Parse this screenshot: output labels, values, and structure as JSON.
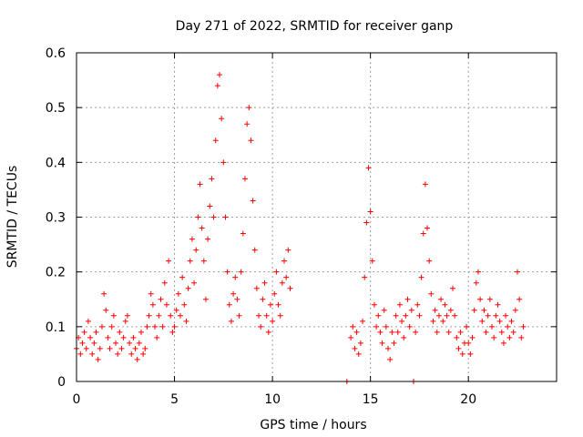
{
  "chart_data": {
    "type": "scatter",
    "title": "Day 271 of 2022, SRMTID for receiver ganp",
    "xlabel": "GPS time / hours",
    "ylabel": "SRMTID / TECUs",
    "xlim": [
      0,
      24.5
    ],
    "ylim": [
      0,
      0.6
    ],
    "xticks": [
      0,
      5,
      10,
      15,
      20
    ],
    "xtick_labels": [
      "0",
      "5",
      "10",
      "15",
      "20"
    ],
    "yticks": [
      0,
      0.1,
      0.2,
      0.3,
      0.4,
      0.5,
      0.6
    ],
    "ytick_labels": [
      "0",
      "0.1",
      "0.2",
      "0.3",
      "0.4",
      "0.5",
      "0.6"
    ],
    "grid": true,
    "marker": "plus",
    "color": "#ff0000",
    "series": [
      {
        "name": "SRMTID",
        "points": [
          [
            0.0,
            0.06
          ],
          [
            0.1,
            0.08
          ],
          [
            0.2,
            0.05
          ],
          [
            0.3,
            0.07
          ],
          [
            0.4,
            0.09
          ],
          [
            0.5,
            0.06
          ],
          [
            0.6,
            0.11
          ],
          [
            0.7,
            0.08
          ],
          [
            0.8,
            0.05
          ],
          [
            0.9,
            0.07
          ],
          [
            1.0,
            0.09
          ],
          [
            1.1,
            0.04
          ],
          [
            1.2,
            0.06
          ],
          [
            1.3,
            0.1
          ],
          [
            1.4,
            0.16
          ],
          [
            1.5,
            0.13
          ],
          [
            1.6,
            0.08
          ],
          [
            1.7,
            0.06
          ],
          [
            1.8,
            0.1
          ],
          [
            1.9,
            0.12
          ],
          [
            2.0,
            0.07
          ],
          [
            2.1,
            0.05
          ],
          [
            2.2,
            0.09
          ],
          [
            2.3,
            0.06
          ],
          [
            2.4,
            0.08
          ],
          [
            2.5,
            0.11
          ],
          [
            2.6,
            0.12
          ],
          [
            2.7,
            0.07
          ],
          [
            2.8,
            0.05
          ],
          [
            2.9,
            0.08
          ],
          [
            3.0,
            0.06
          ],
          [
            3.1,
            0.04
          ],
          [
            3.2,
            0.07
          ],
          [
            3.3,
            0.09
          ],
          [
            3.4,
            0.05
          ],
          [
            3.5,
            0.06
          ],
          [
            3.6,
            0.1
          ],
          [
            3.7,
            0.12
          ],
          [
            3.8,
            0.16
          ],
          [
            3.9,
            0.14
          ],
          [
            4.0,
            0.1
          ],
          [
            4.1,
            0.08
          ],
          [
            4.2,
            0.12
          ],
          [
            4.3,
            0.15
          ],
          [
            4.4,
            0.1
          ],
          [
            4.5,
            0.18
          ],
          [
            4.6,
            0.14
          ],
          [
            4.7,
            0.22
          ],
          [
            4.8,
            0.12
          ],
          [
            4.9,
            0.09
          ],
          [
            5.0,
            0.1
          ],
          [
            5.1,
            0.13
          ],
          [
            5.2,
            0.16
          ],
          [
            5.3,
            0.12
          ],
          [
            5.4,
            0.19
          ],
          [
            5.5,
            0.14
          ],
          [
            5.6,
            0.11
          ],
          [
            5.7,
            0.17
          ],
          [
            5.8,
            0.22
          ],
          [
            5.9,
            0.26
          ],
          [
            6.0,
            0.18
          ],
          [
            6.1,
            0.24
          ],
          [
            6.2,
            0.3
          ],
          [
            6.3,
            0.36
          ],
          [
            6.4,
            0.28
          ],
          [
            6.5,
            0.22
          ],
          [
            6.6,
            0.15
          ],
          [
            6.7,
            0.26
          ],
          [
            6.8,
            0.32
          ],
          [
            6.9,
            0.37
          ],
          [
            7.0,
            0.3
          ],
          [
            7.1,
            0.44
          ],
          [
            7.2,
            0.54
          ],
          [
            7.3,
            0.56
          ],
          [
            7.4,
            0.48
          ],
          [
            7.5,
            0.4
          ],
          [
            7.6,
            0.3
          ],
          [
            7.7,
            0.2
          ],
          [
            7.8,
            0.14
          ],
          [
            7.9,
            0.11
          ],
          [
            8.0,
            0.16
          ],
          [
            8.1,
            0.19
          ],
          [
            8.2,
            0.15
          ],
          [
            8.3,
            0.12
          ],
          [
            8.4,
            0.2
          ],
          [
            8.5,
            0.27
          ],
          [
            8.6,
            0.37
          ],
          [
            8.7,
            0.47
          ],
          [
            8.8,
            0.5
          ],
          [
            8.9,
            0.44
          ],
          [
            9.0,
            0.33
          ],
          [
            9.1,
            0.24
          ],
          [
            9.2,
            0.17
          ],
          [
            9.3,
            0.12
          ],
          [
            9.4,
            0.1
          ],
          [
            9.5,
            0.15
          ],
          [
            9.6,
            0.18
          ],
          [
            9.7,
            0.12
          ],
          [
            9.8,
            0.09
          ],
          [
            9.9,
            0.14
          ],
          [
            10.0,
            0.11
          ],
          [
            10.1,
            0.16
          ],
          [
            10.2,
            0.2
          ],
          [
            10.3,
            0.14
          ],
          [
            10.4,
            0.12
          ],
          [
            10.5,
            0.18
          ],
          [
            10.6,
            0.22
          ],
          [
            10.7,
            0.19
          ],
          [
            10.8,
            0.24
          ],
          [
            10.9,
            0.17
          ],
          [
            13.8,
            0.0
          ],
          [
            14.0,
            0.08
          ],
          [
            14.1,
            0.1
          ],
          [
            14.2,
            0.06
          ],
          [
            14.3,
            0.09
          ],
          [
            14.4,
            0.05
          ],
          [
            14.5,
            0.07
          ],
          [
            14.6,
            0.11
          ],
          [
            14.7,
            0.19
          ],
          [
            14.8,
            0.29
          ],
          [
            14.9,
            0.39
          ],
          [
            15.0,
            0.31
          ],
          [
            15.1,
            0.22
          ],
          [
            15.2,
            0.14
          ],
          [
            15.3,
            0.1
          ],
          [
            15.4,
            0.12
          ],
          [
            15.5,
            0.09
          ],
          [
            15.6,
            0.07
          ],
          [
            15.7,
            0.13
          ],
          [
            15.8,
            0.1
          ],
          [
            15.9,
            0.06
          ],
          [
            16.0,
            0.04
          ],
          [
            16.1,
            0.09
          ],
          [
            16.2,
            0.07
          ],
          [
            16.3,
            0.12
          ],
          [
            16.4,
            0.09
          ],
          [
            16.5,
            0.14
          ],
          [
            16.6,
            0.11
          ],
          [
            16.7,
            0.08
          ],
          [
            16.8,
            0.12
          ],
          [
            16.9,
            0.15
          ],
          [
            17.0,
            0.1
          ],
          [
            17.1,
            0.13
          ],
          [
            17.2,
            0.0
          ],
          [
            17.3,
            0.09
          ],
          [
            17.4,
            0.14
          ],
          [
            17.5,
            0.12
          ],
          [
            17.6,
            0.19
          ],
          [
            17.7,
            0.27
          ],
          [
            17.8,
            0.36
          ],
          [
            17.9,
            0.28
          ],
          [
            18.0,
            0.22
          ],
          [
            18.1,
            0.16
          ],
          [
            18.2,
            0.11
          ],
          [
            18.3,
            0.13
          ],
          [
            18.4,
            0.09
          ],
          [
            18.5,
            0.12
          ],
          [
            18.6,
            0.15
          ],
          [
            18.7,
            0.11
          ],
          [
            18.8,
            0.14
          ],
          [
            18.9,
            0.12
          ],
          [
            19.0,
            0.09
          ],
          [
            19.1,
            0.13
          ],
          [
            19.2,
            0.17
          ],
          [
            19.3,
            0.12
          ],
          [
            19.4,
            0.08
          ],
          [
            19.5,
            0.06
          ],
          [
            19.6,
            0.09
          ],
          [
            19.7,
            0.05
          ],
          [
            19.8,
            0.07
          ],
          [
            19.9,
            0.1
          ],
          [
            20.0,
            0.07
          ],
          [
            20.1,
            0.05
          ],
          [
            20.2,
            0.08
          ],
          [
            20.3,
            0.13
          ],
          [
            20.4,
            0.18
          ],
          [
            20.5,
            0.2
          ],
          [
            20.6,
            0.15
          ],
          [
            20.7,
            0.11
          ],
          [
            20.8,
            0.13
          ],
          [
            20.9,
            0.09
          ],
          [
            21.0,
            0.12
          ],
          [
            21.1,
            0.15
          ],
          [
            21.2,
            0.1
          ],
          [
            21.3,
            0.08
          ],
          [
            21.4,
            0.12
          ],
          [
            21.5,
            0.14
          ],
          [
            21.6,
            0.11
          ],
          [
            21.7,
            0.09
          ],
          [
            21.8,
            0.07
          ],
          [
            21.9,
            0.12
          ],
          [
            22.0,
            0.1
          ],
          [
            22.1,
            0.08
          ],
          [
            22.2,
            0.11
          ],
          [
            22.3,
            0.09
          ],
          [
            22.4,
            0.13
          ],
          [
            22.5,
            0.2
          ],
          [
            22.6,
            0.15
          ],
          [
            22.7,
            0.08
          ],
          [
            22.8,
            0.1
          ]
        ]
      }
    ]
  }
}
